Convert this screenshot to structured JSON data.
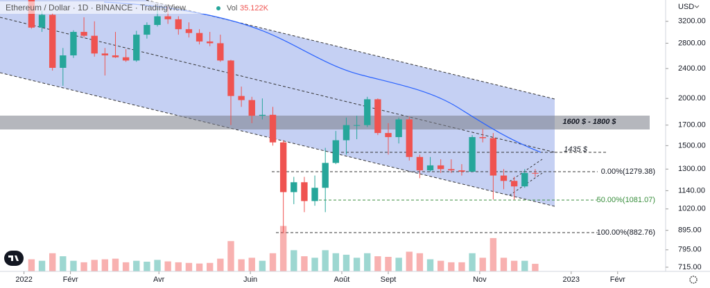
{
  "chart_data": {
    "type": "candlestick",
    "title": "Ethereum / Dollar · 1D · BINANCE · TradingView",
    "volume_label": "Vol",
    "volume_value_label": "35.122K",
    "currency": "USD",
    "x": [
      5,
      12,
      19,
      26,
      33,
      40,
      47,
      54,
      61,
      68,
      75,
      82,
      89,
      96,
      103,
      110,
      117,
      124,
      131,
      138,
      145,
      152,
      159,
      166,
      173,
      180,
      187,
      194,
      201,
      208,
      215,
      222,
      229,
      236,
      243,
      250,
      257,
      264,
      271,
      278,
      285,
      292,
      299,
      306,
      313,
      320,
      327,
      334,
      341
    ],
    "open": [
      3765,
      3080,
      3330,
      2410,
      2600,
      3000,
      2930,
      2630,
      2600,
      2570,
      2520,
      2950,
      3130,
      3300,
      3240,
      3050,
      2980,
      2830,
      2800,
      2520,
      2030,
      1980,
      1800,
      1810,
      1530,
      1130,
      1200,
      1070,
      1160,
      1350,
      1550,
      1700,
      1700,
      1990,
      1620,
      1580,
      1760,
      1400,
      1290,
      1330,
      1300,
      1290,
      1280,
      1580,
      1570,
      1250,
      1210,
      1170,
      1270
    ],
    "high": [
      3830,
      3410,
      3360,
      2720,
      3030,
      3280,
      3200,
      2720,
      3000,
      2700,
      3020,
      3180,
      3480,
      3500,
      3300,
      3180,
      3050,
      3000,
      2950,
      2530,
      2150,
      2020,
      2000,
      1900,
      1550,
      1240,
      1240,
      1250,
      1480,
      1640,
      1780,
      1800,
      2020,
      2000,
      1720,
      1780,
      1790,
      1420,
      1400,
      1380,
      1380,
      1340,
      1600,
      1660,
      1620,
      1300,
      1240,
      1300,
      1300
    ],
    "low": [
      3060,
      3000,
      2370,
      2160,
      2560,
      2900,
      2580,
      2300,
      2560,
      2500,
      2500,
      2880,
      3100,
      3150,
      2950,
      2900,
      2780,
      2750,
      2500,
      1700,
      1900,
      1720,
      1760,
      1500,
      880,
      1050,
      1000,
      1040,
      1000,
      1340,
      1420,
      1560,
      1680,
      1600,
      1420,
      1520,
      1370,
      1230,
      1280,
      1270,
      1270,
      1250,
      1280,
      1530,
      1080,
      1150,
      1080,
      1160,
      1240
    ],
    "close": [
      3080,
      3330,
      2410,
      2600,
      3000,
      2930,
      2630,
      2600,
      2570,
      2520,
      2950,
      3130,
      3300,
      3240,
      3050,
      2980,
      2830,
      2800,
      2520,
      2030,
      1980,
      1800,
      1810,
      1530,
      1130,
      1200,
      1070,
      1160,
      1350,
      1550,
      1700,
      1700,
      1990,
      1620,
      1580,
      1760,
      1400,
      1290,
      1330,
      1300,
      1290,
      1280,
      1580,
      1570,
      1250,
      1210,
      1170,
      1270,
      1265
    ],
    "volume": [
      400,
      350,
      600,
      500,
      350,
      300,
      380,
      400,
      420,
      300,
      350,
      320,
      380,
      330,
      300,
      280,
      260,
      280,
      420,
      1000,
      400,
      450,
      350,
      600,
      1500,
      700,
      500,
      450,
      700,
      600,
      550,
      450,
      600,
      500,
      480,
      450,
      650,
      600,
      400,
      350,
      300,
      300,
      600,
      450,
      1100,
      450,
      350,
      350,
      250
    ],
    "volume_lim": [
      0,
      1600
    ],
    "up_color": "#26a69a",
    "down_color": "#ef5350",
    "xlim": [
      -16,
      428
    ],
    "xticks": [
      {
        "value": 0,
        "label": "2022"
      },
      {
        "value": 31,
        "label": "Févr"
      },
      {
        "value": 90,
        "label": "Avr"
      },
      {
        "value": 151,
        "label": "Juin"
      },
      {
        "value": 212,
        "label": "Août"
      },
      {
        "value": 243,
        "label": "Sept"
      },
      {
        "value": 304,
        "label": "Nov"
      },
      {
        "value": 365,
        "label": "2023"
      },
      {
        "value": 396,
        "label": "Févr"
      }
    ],
    "ylim": [
      697,
      3644
    ],
    "log_scale": true,
    "yticks": [
      {
        "value": 3200,
        "label": "3200.00"
      },
      {
        "value": 2800,
        "label": "2800.00"
      },
      {
        "value": 2400,
        "label": "2400.00"
      },
      {
        "value": 2000,
        "label": "2000.00"
      },
      {
        "value": 1700,
        "label": "1700.00"
      },
      {
        "value": 1500,
        "label": "1500.00"
      },
      {
        "value": 1300,
        "label": "1300.00"
      },
      {
        "value": 1140,
        "label": "1140.00"
      },
      {
        "value": 1020,
        "label": "1020.00"
      },
      {
        "value": 895,
        "label": "895.00"
      },
      {
        "value": 795,
        "label": "795.00"
      },
      {
        "value": 715,
        "label": "715.00"
      }
    ],
    "annotations": {
      "zone": "1600 $ - 1800 $",
      "level": "1435 $",
      "fib": [
        "0.00%(1279.38)",
        "50.00%(1081.07)",
        "100.00%(882.76)"
      ]
    }
  }
}
